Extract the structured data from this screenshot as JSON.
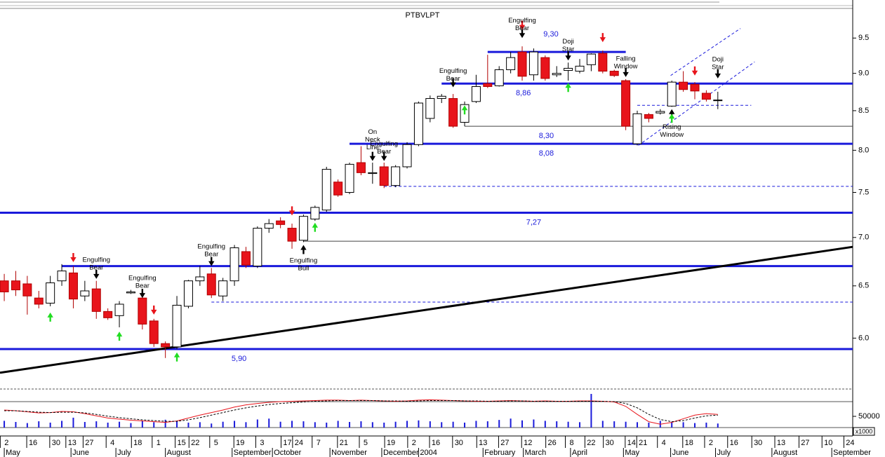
{
  "chart_data": {
    "type": "candlestick",
    "title": "PTBVLPT",
    "log_scale": true,
    "xlim": [
      -0.37,
      73.72
    ],
    "ylim": [
      5.58,
      10.07
    ],
    "yticks": [
      {
        "value": 6,
        "label": "6.0"
      },
      {
        "value": 6.5,
        "label": "6.5"
      },
      {
        "value": 7,
        "label": "7.0"
      },
      {
        "value": 7.5,
        "label": "7.5"
      },
      {
        "value": 8,
        "label": "8.0"
      },
      {
        "value": 8.5,
        "label": "8.5"
      },
      {
        "value": 9,
        "label": "9.0"
      },
      {
        "value": 9.5,
        "label": "9.5"
      }
    ],
    "up_color": "#ffffff",
    "down_color": "#e8141b",
    "open": [
      6.55,
      6.55,
      6.52,
      6.38,
      6.33,
      6.55,
      6.63,
      6.4,
      6.47,
      6.25,
      6.21,
      6.43,
      6.38,
      6.16,
      5.95,
      5.92,
      6.3,
      6.55,
      6.62,
      6.4,
      6.55,
      6.85,
      6.7,
      7.1,
      7.18,
      7.1,
      6.97,
      7.2,
      7.3,
      7.62,
      7.5,
      7.85,
      7.72,
      7.8,
      7.58,
      7.8,
      8.07,
      8.4,
      8.66,
      8.66,
      8.35,
      8.62,
      8.86,
      8.83,
      9.05,
      9.3,
      8.98,
      9.22,
      8.98,
      9.04,
      9.03,
      9.12,
      9.28,
      9.03,
      8.9,
      8.08,
      8.45,
      8.47,
      8.56,
      8.88,
      8.85,
      8.73,
      8.64
    ],
    "high": [
      6.62,
      6.65,
      6.6,
      6.45,
      6.6,
      6.72,
      6.7,
      6.55,
      6.55,
      6.28,
      6.35,
      6.46,
      6.42,
      6.18,
      5.97,
      6.4,
      6.56,
      6.7,
      6.68,
      6.58,
      6.92,
      6.9,
      7.12,
      7.2,
      7.22,
      7.15,
      7.25,
      7.35,
      7.8,
      7.65,
      7.85,
      8.05,
      7.85,
      7.85,
      7.82,
      8.1,
      8.62,
      8.7,
      8.72,
      8.72,
      8.62,
      8.98,
      9.26,
      9.1,
      9.3,
      9.38,
      9.35,
      9.25,
      9.1,
      9.15,
      9.2,
      9.28,
      9.32,
      9.05,
      8.92,
      8.5,
      8.47,
      8.52,
      8.9,
      9.03,
      8.88,
      8.77,
      8.75
    ],
    "low": [
      6.35,
      6.4,
      6.22,
      6.28,
      6.3,
      6.5,
      6.28,
      6.35,
      6.18,
      6.17,
      6.1,
      6.42,
      6.08,
      5.92,
      5.82,
      5.9,
      6.28,
      6.5,
      6.38,
      6.35,
      6.5,
      6.68,
      6.68,
      7.05,
      7.1,
      6.88,
      6.95,
      7.18,
      7.28,
      7.45,
      7.48,
      7.7,
      7.6,
      7.55,
      7.56,
      7.78,
      8.05,
      8.35,
      8.6,
      8.28,
      8.3,
      8.6,
      8.8,
      8.82,
      9.0,
      8.9,
      8.9,
      8.9,
      8.95,
      8.9,
      9.0,
      9.03,
      9.0,
      8.95,
      8.25,
      8.06,
      8.35,
      8.45,
      8.55,
      8.75,
      8.65,
      8.62,
      8.52
    ],
    "close": [
      6.44,
      6.46,
      6.4,
      6.32,
      6.53,
      6.65,
      6.37,
      6.45,
      6.25,
      6.19,
      6.32,
      6.44,
      6.13,
      5.95,
      5.92,
      6.31,
      6.55,
      6.59,
      6.41,
      6.55,
      6.89,
      6.71,
      7.1,
      7.15,
      7.14,
      6.96,
      7.23,
      7.33,
      7.77,
      7.47,
      7.83,
      7.73,
      7.73,
      7.58,
      7.8,
      8.07,
      8.6,
      8.66,
      8.69,
      8.3,
      8.58,
      8.82,
      8.82,
      9.05,
      9.22,
      8.96,
      9.3,
      8.93,
      9.0,
      9.07,
      9.1,
      9.27,
      9.03,
      8.97,
      8.3,
      8.46,
      8.4,
      8.49,
      8.88,
      8.78,
      8.76,
      8.65,
      8.64
    ],
    "levels": [
      {
        "value": 5.9,
        "label": "5,90",
        "label_at": 20.4,
        "style": "thick"
      },
      {
        "value": 6.7,
        "from": 5,
        "style": "thick"
      },
      {
        "value": 7.27,
        "label": "7,27",
        "label_at": 46,
        "style": "thick"
      },
      {
        "value": 8.08,
        "label": "8,08",
        "label_at": 47.1,
        "from": 30,
        "style": "thick"
      },
      {
        "value": 8.86,
        "label": "8,86",
        "label_at": 45.1,
        "from": 38,
        "style": "thick"
      },
      {
        "value": 9.3,
        "label": "9,30",
        "label_at": 47.5,
        "label_pos": "above",
        "from": 42,
        "to": 54,
        "style": "thick"
      },
      {
        "value": 6.96,
        "from": 26,
        "style": "thin"
      },
      {
        "value": 8.3,
        "label": "8,30",
        "label_at": 47.1,
        "from": 40,
        "style": "thin"
      },
      {
        "value": 6.34,
        "from": 18,
        "style": "dashed"
      },
      {
        "value": 7.57,
        "from": 33,
        "style": "dashed"
      },
      {
        "value": 8.57,
        "from": 55,
        "to": 64.9,
        "style": "dashed"
      }
    ],
    "trendline": {
      "from": [
        -0.37,
        5.69
      ],
      "to": [
        73.72,
        6.9
      ],
      "color": "#000000"
    },
    "channel": [
      {
        "from": [
          57.9,
          8.97
        ],
        "to": [
          63.96,
          9.64
        ]
      },
      {
        "from": [
          55.1,
          8.06
        ],
        "to": [
          65.2,
          9.16
        ]
      }
    ],
    "annotations": [
      {
        "lines": [
          "Engulfing",
          "Bear"
        ],
        "x": 8,
        "y": 6.8
      },
      {
        "lines": [
          "Engulfing",
          "Bear"
        ],
        "x": 12,
        "y": 6.61
      },
      {
        "lines": [
          "Engulfing",
          "Bear"
        ],
        "x": 18,
        "y": 6.94
      },
      {
        "lines": [
          "Engulfing",
          "Bull"
        ],
        "x": 26,
        "y": 6.79
      },
      {
        "lines": [
          "On",
          "Neck",
          "Line"
        ],
        "x": 32,
        "y": 8.27
      },
      {
        "lines": [
          "Engulfing",
          "Bear"
        ],
        "x": 33,
        "y": 8.12
      },
      {
        "lines": [
          "Engulfing",
          "Bear"
        ],
        "x": 39,
        "y": 9.08
      },
      {
        "lines": [
          "Engulfing",
          "Bear"
        ],
        "x": 45,
        "y": 9.81
      },
      {
        "lines": [
          "Doji",
          "Star"
        ],
        "x": 49,
        "y": 9.5
      },
      {
        "lines": [
          "Falling",
          "Window"
        ],
        "x": 54,
        "y": 9.25
      },
      {
        "lines": [
          "Rising",
          "Window"
        ],
        "x": 58,
        "y": 8.33
      },
      {
        "lines": [
          "Doji",
          "Star"
        ],
        "x": 62,
        "y": 9.24
      }
    ],
    "arrows": [
      {
        "x": 8,
        "y": 6.57,
        "dir": "down",
        "color": "#000000"
      },
      {
        "x": 12,
        "y": 6.38,
        "dir": "down",
        "color": "#000000"
      },
      {
        "x": 18,
        "y": 6.7,
        "dir": "down",
        "color": "#000000"
      },
      {
        "x": 32,
        "y": 7.87,
        "dir": "down",
        "color": "#000000"
      },
      {
        "x": 33,
        "y": 7.87,
        "dir": "down",
        "color": "#000000"
      },
      {
        "x": 39,
        "y": 8.81,
        "dir": "down",
        "color": "#000000"
      },
      {
        "x": 45,
        "y": 9.5,
        "dir": "down",
        "color": "#000000"
      },
      {
        "x": 49,
        "y": 9.18,
        "dir": "down",
        "color": "#000000"
      },
      {
        "x": 54,
        "y": 8.95,
        "dir": "down",
        "color": "#000000"
      },
      {
        "x": 62,
        "y": 8.93,
        "dir": "down",
        "color": "#000000"
      },
      {
        "x": 26,
        "y": 6.92,
        "dir": "up",
        "color": "#000000"
      },
      {
        "x": 58,
        "y": 8.52,
        "dir": "up",
        "color": "#000000"
      },
      {
        "x": 6,
        "y": 6.74,
        "dir": "down",
        "color": "#e8141b"
      },
      {
        "x": 13,
        "y": 6.22,
        "dir": "down",
        "color": "#e8141b"
      },
      {
        "x": 25,
        "y": 7.24,
        "dir": "down",
        "color": "#e8141b"
      },
      {
        "x": 45,
        "y": 9.62,
        "dir": "down",
        "color": "#e8141b"
      },
      {
        "x": 52,
        "y": 9.44,
        "dir": "down",
        "color": "#e8141b"
      },
      {
        "x": 60,
        "y": 8.97,
        "dir": "down",
        "color": "#e8141b"
      },
      {
        "x": 4,
        "y": 6.24,
        "dir": "up",
        "color": "#22dd22"
      },
      {
        "x": 10,
        "y": 6.06,
        "dir": "up",
        "color": "#22dd22"
      },
      {
        "x": 15,
        "y": 5.87,
        "dir": "up",
        "color": "#22dd22"
      },
      {
        "x": 27,
        "y": 7.16,
        "dir": "up",
        "color": "#22dd22"
      },
      {
        "x": 40,
        "y": 8.57,
        "dir": "up",
        "color": "#22dd22"
      },
      {
        "x": 49,
        "y": 8.87,
        "dir": "up",
        "color": "#22dd22"
      },
      {
        "x": 58,
        "y": 8.46,
        "dir": "up",
        "color": "#22dd22"
      }
    ],
    "indicator": {
      "ylim": [
        0,
        100
      ],
      "series": [
        {
          "color": "#e8141b",
          "dash": false,
          "values": [
            52,
            50,
            47,
            44,
            45,
            48,
            47,
            42,
            36,
            30,
            27,
            24,
            22,
            20,
            18,
            22,
            30,
            38,
            45,
            52,
            60,
            66,
            70,
            73,
            75,
            76,
            77,
            78,
            79,
            79,
            78,
            79,
            78,
            77,
            76,
            77,
            79,
            80,
            79,
            78,
            77,
            76,
            76,
            77,
            78,
            77,
            76,
            77,
            76,
            76,
            77,
            77,
            76,
            74,
            62,
            40,
            20,
            13,
            18,
            28,
            38,
            42,
            40
          ]
        },
        {
          "color": "#000000",
          "dash": true,
          "values": [
            50,
            50,
            48,
            46,
            45,
            46,
            46,
            44,
            40,
            35,
            31,
            28,
            25,
            23,
            21,
            21,
            25,
            31,
            38,
            45,
            52,
            58,
            63,
            67,
            70,
            72,
            74,
            76,
            77,
            78,
            78,
            78,
            78,
            77,
            77,
            76,
            77,
            78,
            78,
            78,
            77,
            77,
            76,
            76,
            77,
            77,
            76,
            76,
            76,
            76,
            76,
            76,
            76,
            75,
            70,
            58,
            40,
            26,
            20,
            23,
            30,
            36,
            38
          ]
        }
      ]
    },
    "volume": {
      "color": "#1a1adb",
      "ylim": [
        0,
        150000
      ],
      "yticks": [
        50000
      ],
      "unit": "x1000",
      "values": [
        30000,
        25000,
        20000,
        28000,
        22000,
        30000,
        44000,
        25000,
        28000,
        22000,
        26000,
        20000,
        30000,
        24000,
        35000,
        28000,
        22000,
        24000,
        18000,
        26000,
        30000,
        24000,
        36000,
        40000,
        26000,
        30000,
        28000,
        24000,
        22000,
        30000,
        25000,
        28000,
        24000,
        22000,
        26000,
        30000,
        32000,
        28000,
        24000,
        26000,
        22000,
        30000,
        28000,
        34000,
        40000,
        32000,
        36000,
        30000,
        28000,
        26000,
        24000,
        150000,
        30000,
        28000,
        26000,
        24000,
        22000,
        30000,
        26000,
        24000,
        20000,
        22000,
        18000
      ]
    },
    "xticks": [
      {
        "value": 0.2,
        "label": "2"
      },
      {
        "value": 2.5,
        "label": "16"
      },
      {
        "value": 4.5,
        "label": "30"
      },
      {
        "value": 5.9,
        "label": "13"
      },
      {
        "value": 7.4,
        "label": "27"
      },
      {
        "value": 9.4,
        "label": "4"
      },
      {
        "value": 11.6,
        "label": "18"
      },
      {
        "value": 13.4,
        "label": "1"
      },
      {
        "value": 15.4,
        "label": "15"
      },
      {
        "value": 16.6,
        "label": "22"
      },
      {
        "value": 18.4,
        "label": "5"
      },
      {
        "value": 20.5,
        "label": "19"
      },
      {
        "value": 22.4,
        "label": "3"
      },
      {
        "value": 24.6,
        "label": "17"
      },
      {
        "value": 25.6,
        "label": "24"
      },
      {
        "value": 27.3,
        "label": "7"
      },
      {
        "value": 29.5,
        "label": "21"
      },
      {
        "value": 31.4,
        "label": "5"
      },
      {
        "value": 33.6,
        "label": "19"
      },
      {
        "value": 35.6,
        "label": "2"
      },
      {
        "value": 37.5,
        "label": "16"
      },
      {
        "value": 39.5,
        "label": "30"
      },
      {
        "value": 41.6,
        "label": "13"
      },
      {
        "value": 43.5,
        "label": "27"
      },
      {
        "value": 45.5,
        "label": "12"
      },
      {
        "value": 47.6,
        "label": "26"
      },
      {
        "value": 49.3,
        "label": "8"
      },
      {
        "value": 51,
        "label": "22"
      },
      {
        "value": 52.6,
        "label": "30"
      },
      {
        "value": 54.5,
        "label": "14"
      },
      {
        "value": 55.5,
        "label": "21"
      },
      {
        "value": 57.3,
        "label": "4"
      },
      {
        "value": 59.5,
        "label": "18"
      },
      {
        "value": 61.4,
        "label": "2"
      },
      {
        "value": 63.4,
        "label": "16"
      },
      {
        "value": 65.5,
        "label": "30"
      },
      {
        "value": 67.5,
        "label": "13"
      },
      {
        "value": 69.6,
        "label": "27"
      },
      {
        "value": 71.6,
        "label": "10"
      },
      {
        "value": 73.5,
        "label": "24"
      }
    ],
    "months": [
      {
        "value": 0,
        "label": "May"
      },
      {
        "value": 5.8,
        "label": "June"
      },
      {
        "value": 9.7,
        "label": "July"
      },
      {
        "value": 14,
        "label": "August"
      },
      {
        "value": 19.8,
        "label": "September"
      },
      {
        "value": 23.3,
        "label": "October"
      },
      {
        "value": 28.3,
        "label": "November"
      },
      {
        "value": 32.8,
        "label": "December"
      },
      {
        "value": 36,
        "label": "2004"
      },
      {
        "value": 41.6,
        "label": "February"
      },
      {
        "value": 45.1,
        "label": "March"
      },
      {
        "value": 49.2,
        "label": "April"
      },
      {
        "value": 53.8,
        "label": "May"
      },
      {
        "value": 57.9,
        "label": "June"
      },
      {
        "value": 61.8,
        "label": "July"
      },
      {
        "value": 66.7,
        "label": "August"
      },
      {
        "value": 71.9,
        "label": "September"
      }
    ]
  }
}
